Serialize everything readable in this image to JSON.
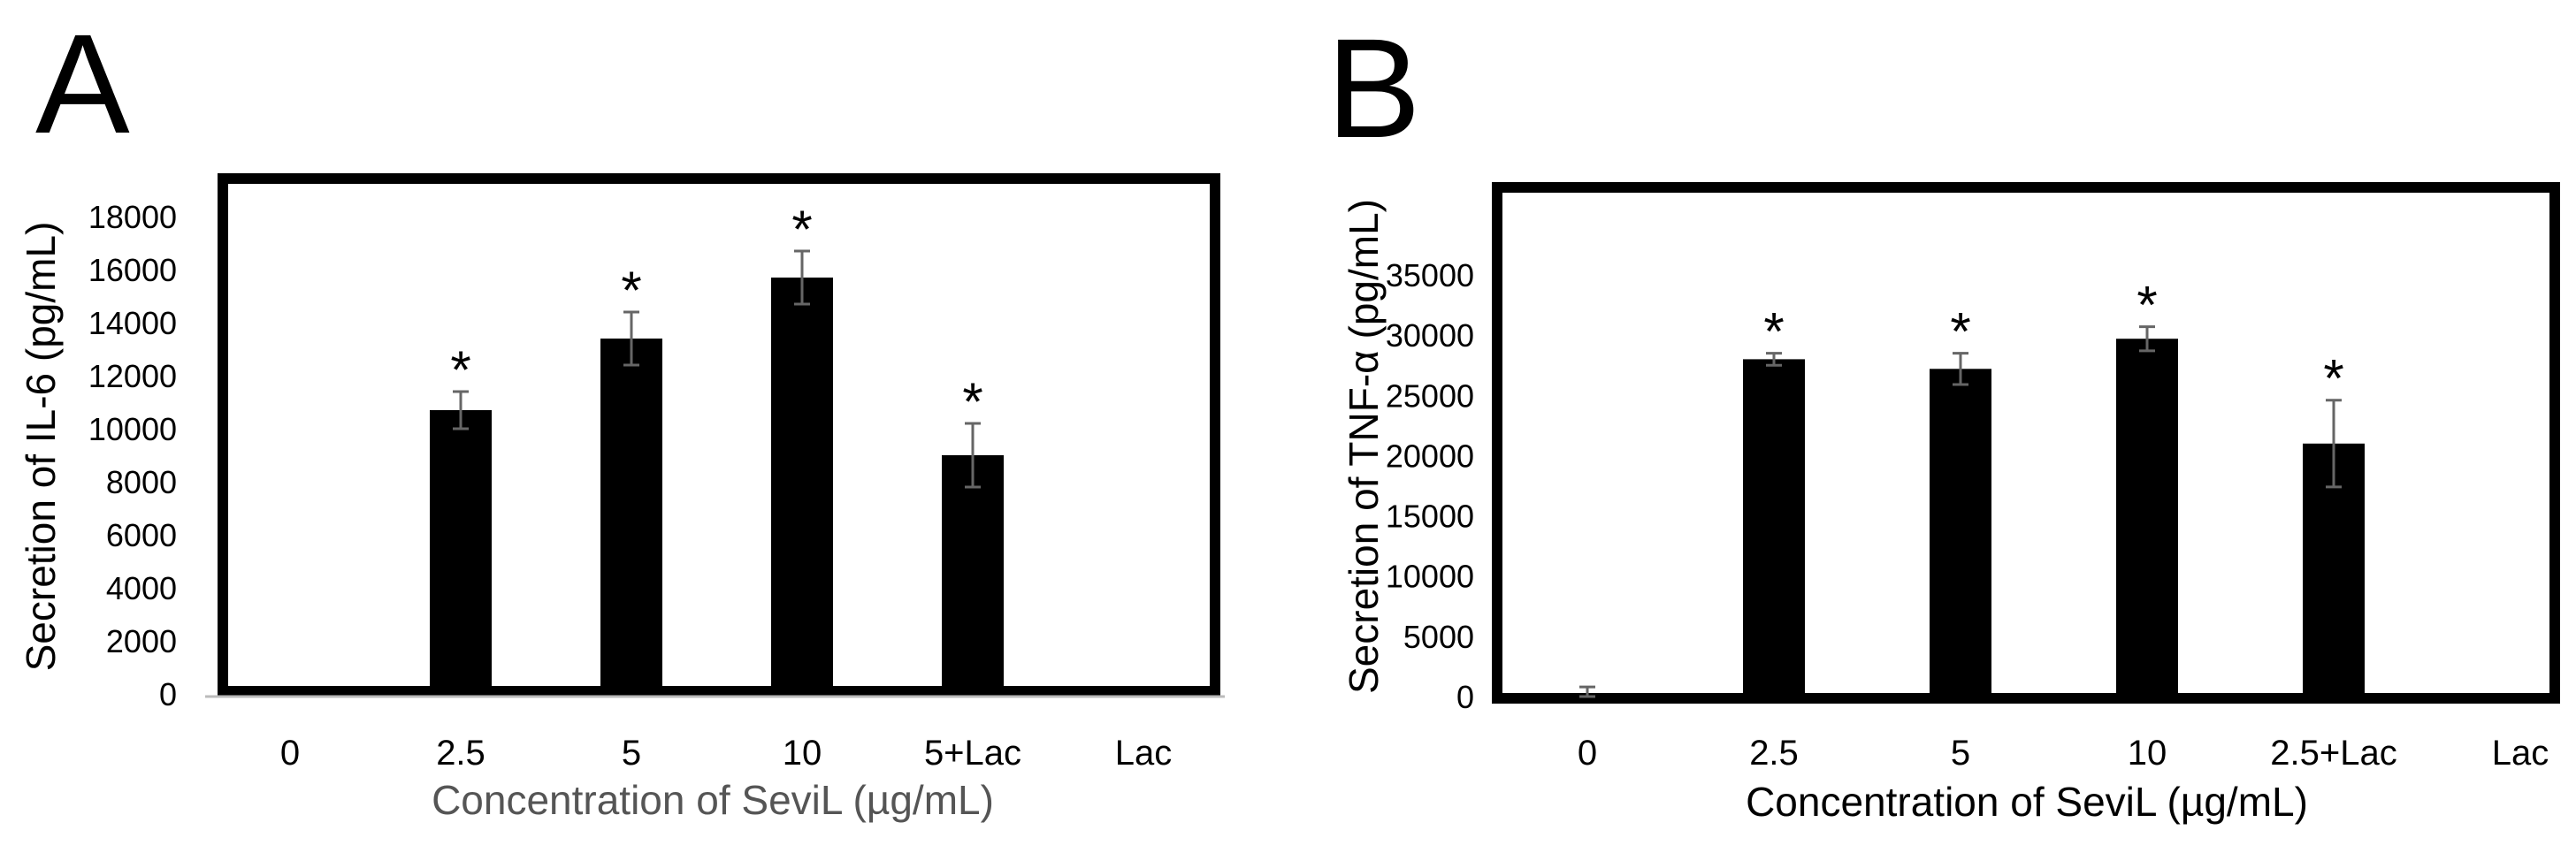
{
  "panels": [
    {
      "letter": "A"
    },
    {
      "letter": "B"
    }
  ],
  "colors": {
    "bar": "#000000",
    "error_bar": "#666666",
    "frame": "#000000",
    "xlabel_A": "#555555",
    "xlabel_B": "#000000",
    "baseline": "#bbbbbb"
  },
  "chart_data": [
    {
      "panel": "A",
      "type": "bar",
      "categories": [
        "0",
        "2.5",
        "5",
        "10",
        "5+Lac",
        "Lac"
      ],
      "values": [
        0,
        10700,
        13400,
        15700,
        9000,
        50
      ],
      "errors": [
        0,
        700,
        1000,
        1000,
        1200,
        0
      ],
      "significance": [
        "",
        "*",
        "*",
        "*",
        "*",
        ""
      ],
      "ylabel": "Secretion of IL-6 (pg/mL)",
      "xlabel": "Concentration of SeviL (µg/mL)",
      "ylim": [
        0,
        18000
      ],
      "yticks": [
        0,
        2000,
        4000,
        6000,
        8000,
        10000,
        12000,
        14000,
        16000,
        18000
      ],
      "grid": false,
      "legend": "none"
    },
    {
      "panel": "B",
      "type": "bar",
      "categories": [
        "0",
        "2.5",
        "5",
        "10",
        "2.5+Lac",
        "Lac"
      ],
      "values": [
        0,
        28000,
        27200,
        29700,
        21000,
        0
      ],
      "errors": [
        800,
        500,
        1300,
        1000,
        3600,
        0
      ],
      "significance": [
        "",
        "*",
        "*",
        "*",
        "*",
        ""
      ],
      "ylabel": "Secretion of TNF-α (pg/mL)",
      "xlabel": "Concentration of SeviL (µg/mL)",
      "ylim": [
        0,
        35000
      ],
      "yticks": [
        0,
        5000,
        10000,
        15000,
        20000,
        25000,
        30000,
        35000
      ],
      "grid": false,
      "legend": "none"
    }
  ]
}
